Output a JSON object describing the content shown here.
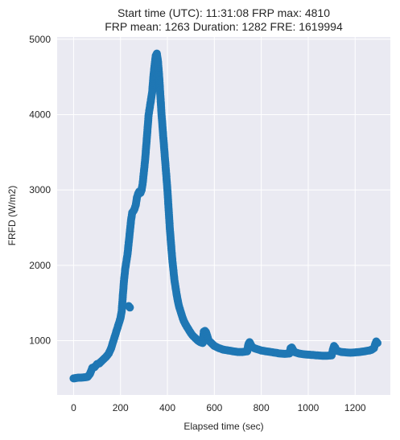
{
  "chart_data": {
    "type": "scatter",
    "title": [
      "Start time (UTC): 11:31:08 FRP max: 4810",
      "FRP mean: 1263 Duration: 1282 FRE: 1619994"
    ],
    "xlabel": "Elapsed time (sec)",
    "ylabel": "FRFD (W/m2)",
    "xlim": [
      -70,
      1350
    ],
    "ylim": [
      280,
      5030
    ],
    "xticks": [
      0,
      200,
      400,
      600,
      800,
      1000,
      1200
    ],
    "yticks": [
      1000,
      2000,
      3000,
      4000,
      5000
    ],
    "grid": true,
    "marker_color": "#1f77b4",
    "background_color": "#eaeaf2",
    "series": [
      {
        "x": [
          0,
          10,
          20,
          30,
          40,
          50,
          60,
          70,
          80,
          90,
          100,
          110,
          120,
          130,
          140,
          150,
          160,
          170,
          180,
          190,
          200,
          205,
          210,
          215,
          220,
          225,
          230,
          235,
          240,
          245,
          250,
          255,
          260,
          265,
          270,
          275,
          280,
          285,
          290,
          295,
          300,
          305,
          310,
          315,
          320,
          325,
          330,
          335,
          340,
          345,
          350,
          355,
          360,
          365,
          370,
          375,
          380,
          385,
          390,
          395,
          400,
          405,
          410,
          415,
          420,
          425,
          430,
          435,
          440,
          445,
          450,
          455,
          460,
          465,
          470,
          475,
          480,
          490,
          500,
          510,
          520,
          530,
          540,
          550,
          555,
          560,
          565,
          570,
          575,
          580,
          590,
          600,
          620,
          640,
          660,
          680,
          700,
          720,
          740,
          745,
          750,
          755,
          760,
          770,
          780,
          800,
          820,
          840,
          860,
          880,
          900,
          920,
          925,
          930,
          935,
          940,
          950,
          960,
          980,
          1000,
          1020,
          1040,
          1060,
          1080,
          1100,
          1105,
          1110,
          1115,
          1120,
          1140,
          1160,
          1180,
          1200,
          1220,
          1240,
          1260,
          1270,
          1280,
          1285,
          1290,
          1295
        ],
        "y": [
          500,
          505,
          510,
          510,
          512,
          515,
          520,
          560,
          640,
          650,
          690,
          700,
          730,
          760,
          790,
          830,
          900,
          1000,
          1100,
          1200,
          1300,
          1390,
          1600,
          1800,
          1950,
          2050,
          2150,
          2300,
          2450,
          2600,
          2700,
          2720,
          2750,
          2800,
          2900,
          2950,
          2980,
          2960,
          3000,
          3100,
          3250,
          3400,
          3600,
          3800,
          4000,
          4100,
          4200,
          4300,
          4500,
          4650,
          4780,
          4810,
          4700,
          4500,
          4250,
          4000,
          3800,
          3600,
          3400,
          3200,
          3000,
          2750,
          2500,
          2300,
          2100,
          1950,
          1800,
          1700,
          1600,
          1520,
          1450,
          1400,
          1350,
          1300,
          1260,
          1230,
          1200,
          1150,
          1100,
          1060,
          1030,
          1000,
          980,
          970,
          1120,
          1130,
          1110,
          1060,
          1010,
          990,
          960,
          930,
          900,
          880,
          870,
          860,
          850,
          850,
          860,
          950,
          980,
          950,
          920,
          900,
          890,
          870,
          860,
          850,
          840,
          830,
          825,
          830,
          900,
          910,
          880,
          850,
          840,
          830,
          820,
          815,
          810,
          805,
          800,
          800,
          805,
          880,
          930,
          910,
          870,
          850,
          845,
          840,
          845,
          850,
          860,
          870,
          880,
          900,
          950,
          990,
          970
        ]
      }
    ],
    "outliers": {
      "x": [
        235,
        240
      ],
      "y": [
        1460,
        1440
      ]
    }
  }
}
